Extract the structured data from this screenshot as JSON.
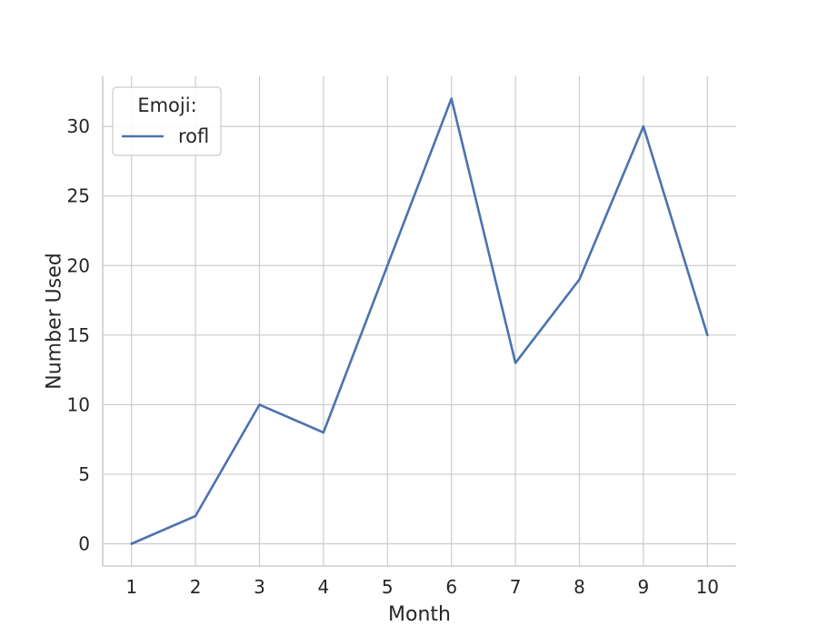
{
  "chart_data": {
    "type": "line",
    "x": [
      1,
      2,
      3,
      4,
      5,
      6,
      7,
      8,
      9,
      10
    ],
    "series": [
      {
        "name": "rofl",
        "values": [
          0,
          2,
          10,
          8,
          20,
          32,
          13,
          19,
          30,
          15
        ],
        "color": "#4c72b0"
      }
    ],
    "xlabel": "Month",
    "ylabel": "Number Used",
    "xlim": [
      0.55,
      10.45
    ],
    "ylim": [
      -1.6,
      33.6
    ],
    "xticks": [
      1,
      2,
      3,
      4,
      5,
      6,
      7,
      8,
      9,
      10
    ],
    "yticks": [
      0,
      5,
      10,
      15,
      20,
      25,
      30
    ],
    "grid": true,
    "legend": {
      "title": "Emoji:",
      "position": "top-left"
    }
  }
}
